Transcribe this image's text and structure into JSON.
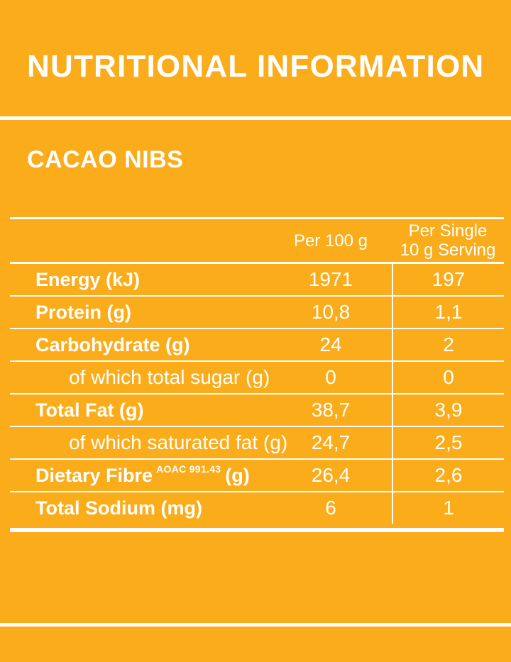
{
  "page": {
    "title": "NUTRITIONAL INFORMATION",
    "product_name": "CACAO NIBS"
  },
  "colors": {
    "background": "#FAAC1B",
    "text_and_rules": "#FFFFFF"
  },
  "table": {
    "headers": {
      "per_100g": "Per 100 g",
      "per_serving_line1": "Per Single",
      "per_serving_line2": "10 g Serving"
    },
    "rows": [
      {
        "label": "Energy (kJ)",
        "per_100g": "1971",
        "per_serving": "197"
      },
      {
        "label": "Protein (g)",
        "per_100g": "10,8",
        "per_serving": "1,1"
      },
      {
        "label": "Carbohydrate (g)",
        "per_100g": "24",
        "per_serving": "2"
      },
      {
        "label": "of which total sugar (g)",
        "per_100g": "0",
        "per_serving": "0"
      },
      {
        "label": "Total Fat (g)",
        "per_100g": "38,7",
        "per_serving": "3,9"
      },
      {
        "label": "of which saturated fat (g)",
        "per_100g": "24,7",
        "per_serving": "2,5"
      },
      {
        "label": "Dietary Fibre",
        "superscript": "AOAC 991.43",
        "label_suffix": "(g)",
        "per_100g": "26,4",
        "per_serving": "2,6"
      },
      {
        "label": "Total Sodium (mg)",
        "per_100g": "6",
        "per_serving": "1"
      }
    ]
  }
}
